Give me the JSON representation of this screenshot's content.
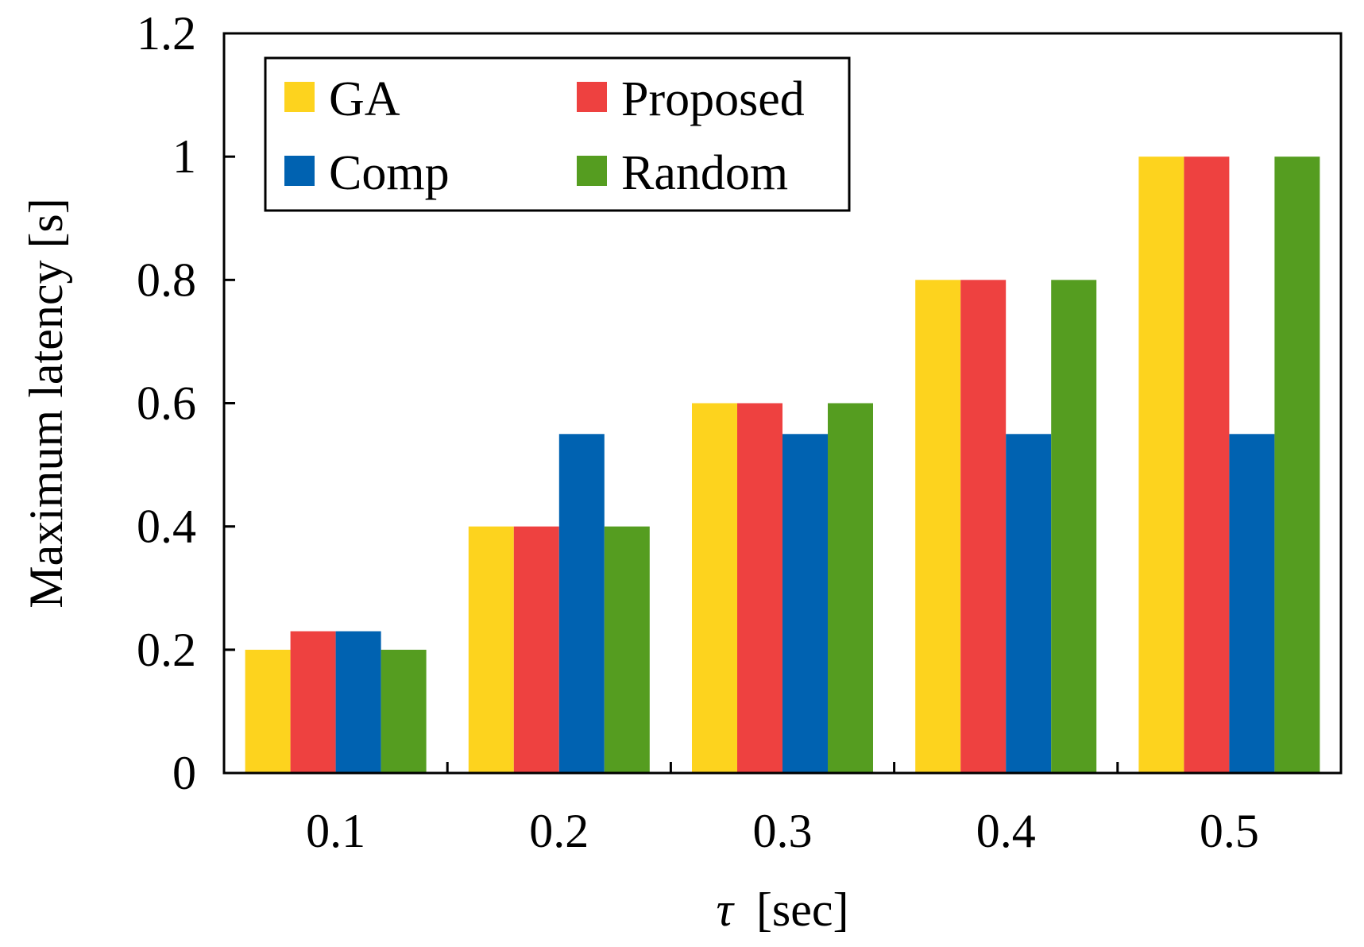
{
  "chart_data": {
    "type": "bar",
    "xlabel_symbol": "τ",
    "xlabel_unit": "[sec]",
    "ylabel": "Maximum latency [s]",
    "categories": [
      "0.1",
      "0.2",
      "0.3",
      "0.4",
      "0.5"
    ],
    "ylim": [
      0,
      1.2
    ],
    "yticks": [
      0,
      0.2,
      0.4,
      0.6,
      0.8,
      1,
      1.2
    ],
    "ytick_labels": [
      "0",
      "0.2",
      "0.4",
      "0.6",
      "0.8",
      "1",
      "1.2"
    ],
    "series": [
      {
        "name": "GA",
        "color": "#FDD31E",
        "values": [
          0.2,
          0.4,
          0.6,
          0.8,
          1.0
        ]
      },
      {
        "name": "Proposed",
        "color": "#EE4140",
        "values": [
          0.23,
          0.4,
          0.6,
          0.8,
          1.0
        ]
      },
      {
        "name": "Comp",
        "color": "#0062B1",
        "values": [
          0.23,
          0.55,
          0.55,
          0.55,
          0.55
        ]
      },
      {
        "name": "Random",
        "color": "#559D20",
        "values": [
          0.2,
          0.4,
          0.6,
          0.8,
          1.0
        ]
      }
    ],
    "legend": {
      "position": "top-left",
      "columns": 2
    },
    "grid": false
  }
}
